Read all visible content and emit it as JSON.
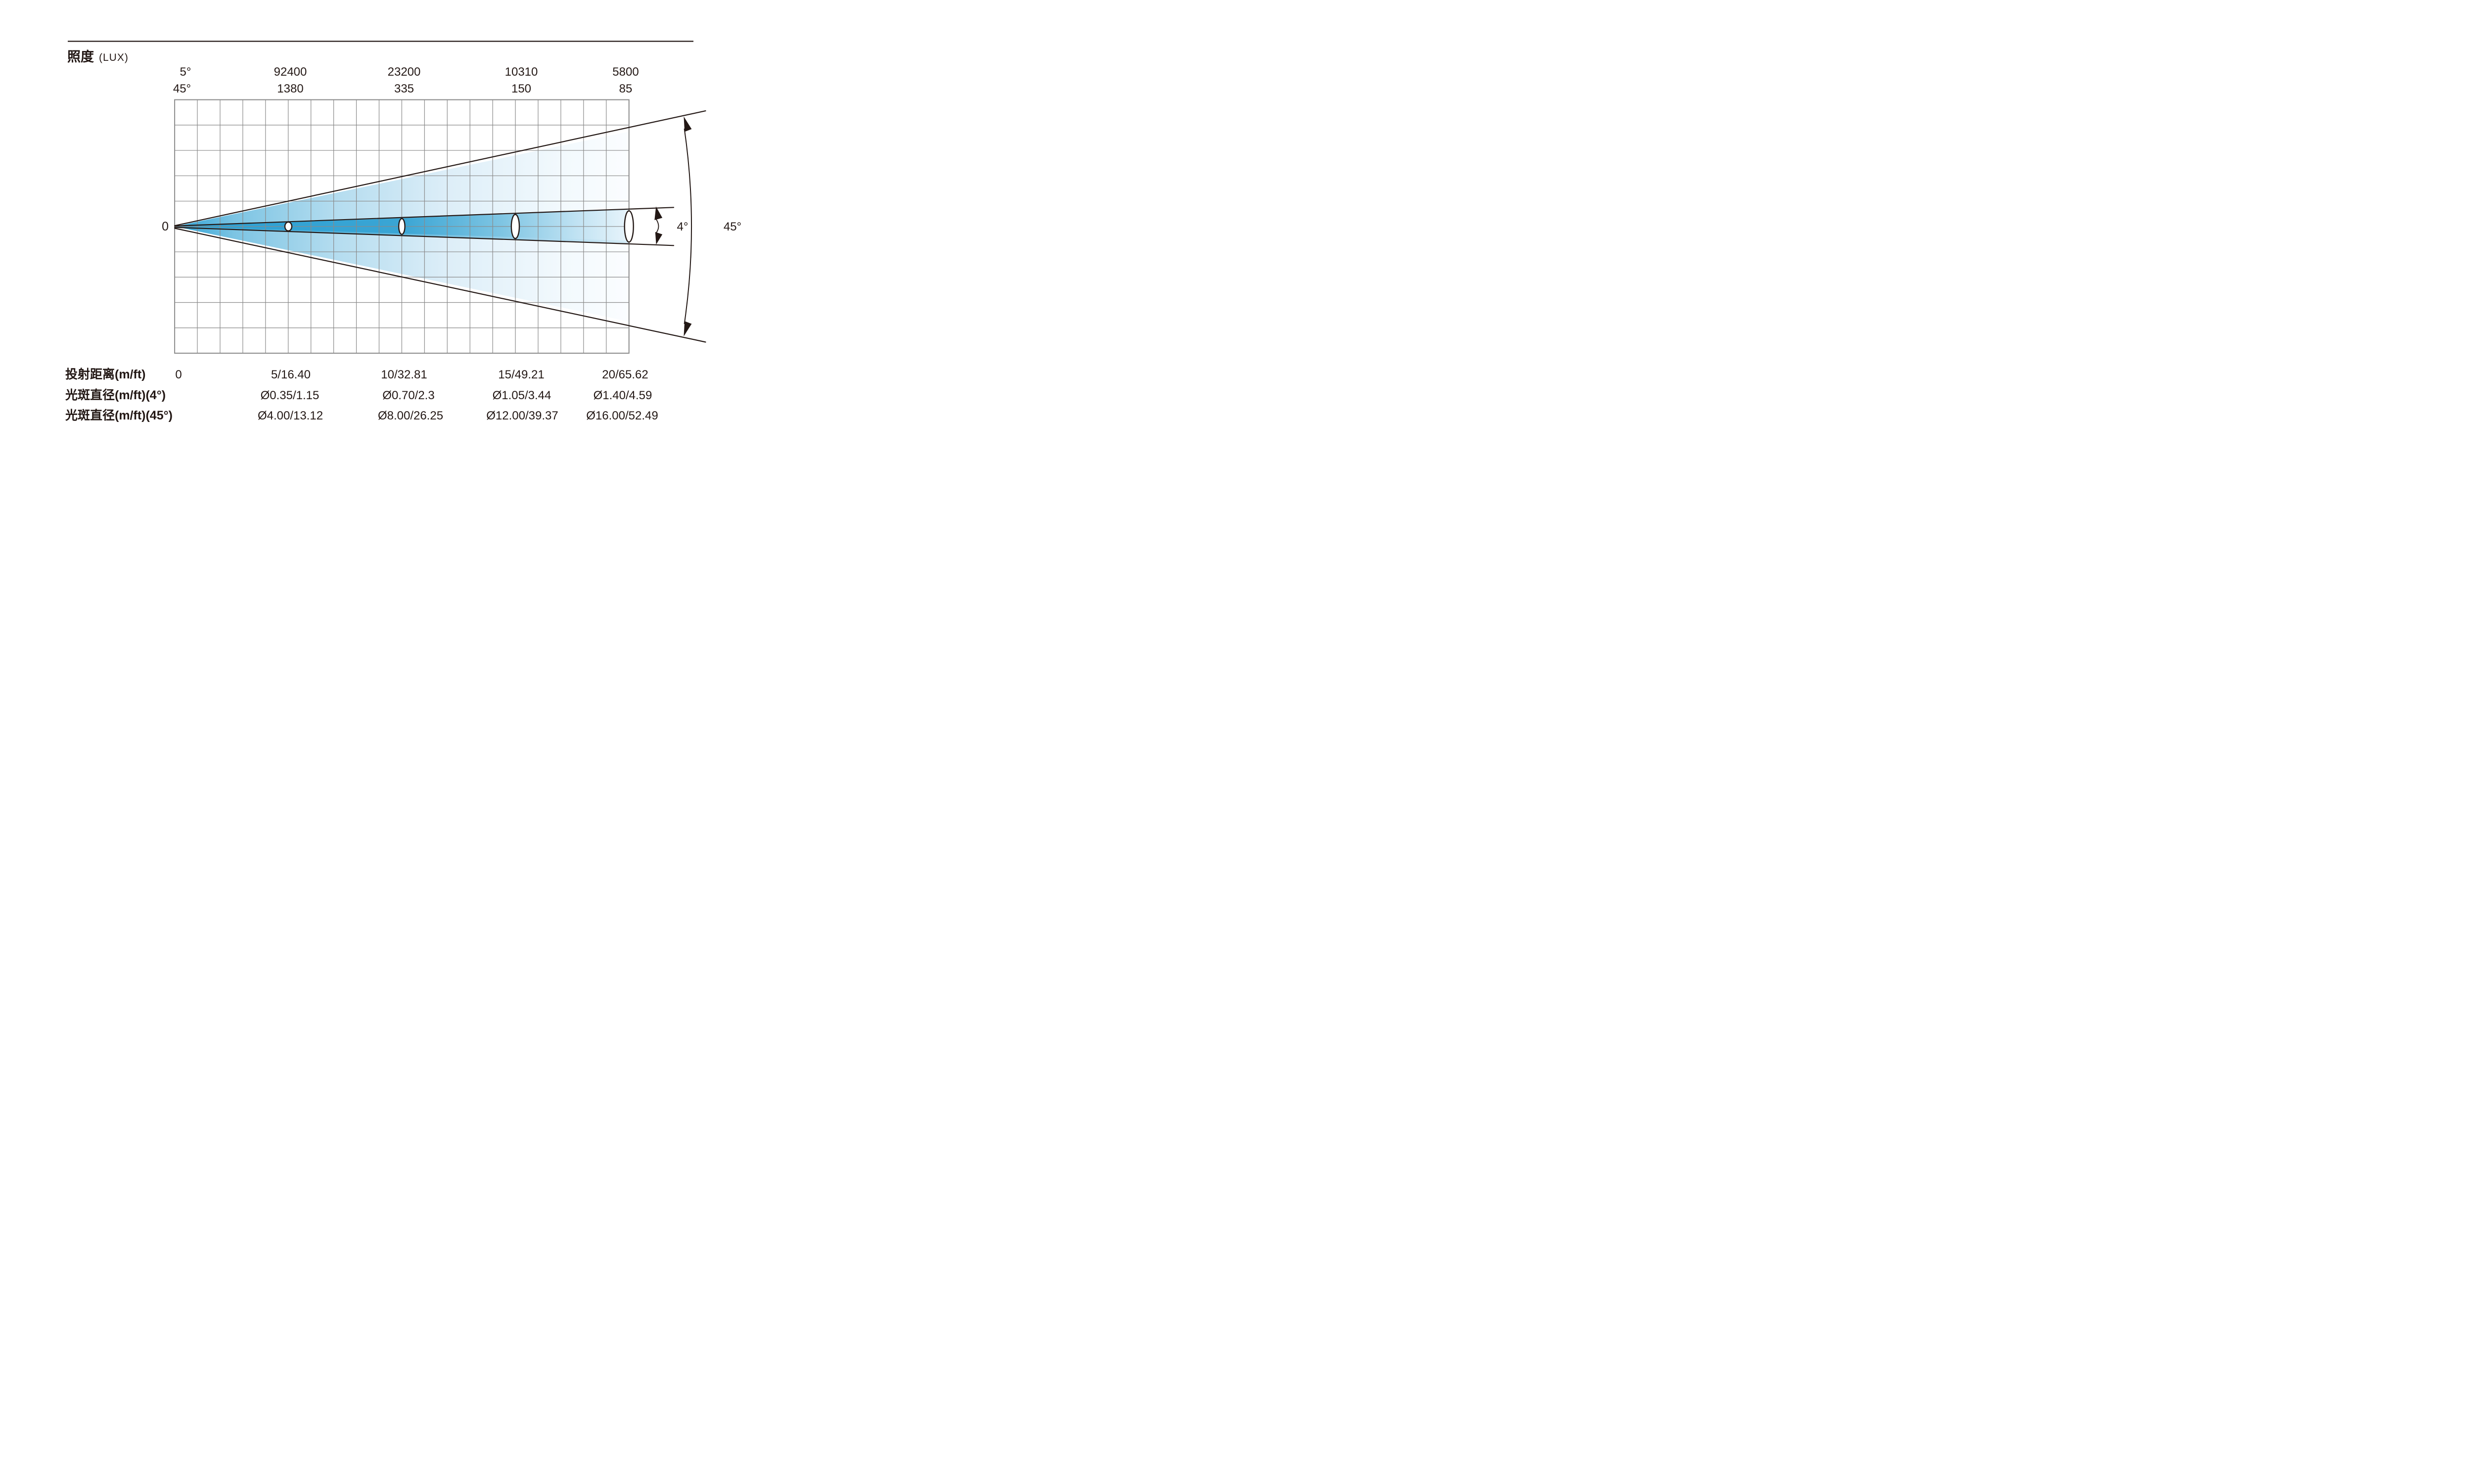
{
  "title": {
    "text": "照度",
    "unit": "(LUX)"
  },
  "chart_data": {
    "type": "table",
    "title": "照度(LUX)",
    "description": "Photometric beam diagram: illuminance in LUX versus throw distance for the narrow (4°/5°) and wide (45°) beam angles, with resulting spot diameters.",
    "x_axis": {
      "label": "投射距离(m/ft)",
      "values": [
        "0",
        "5/16.40",
        "10/32.81",
        "15/49.21",
        "20/65.62"
      ],
      "range_m": [
        0,
        20
      ]
    },
    "origin_label": "0",
    "illuminance_rows": [
      {
        "angle": "5°",
        "values": [
          "92400",
          "23200",
          "10310",
          "5800"
        ]
      },
      {
        "angle": "45°",
        "values": [
          "1380",
          "335",
          "150",
          "85"
        ]
      }
    ],
    "spot_rows": [
      {
        "label": "光斑直径(m/ft)(4°)",
        "values": [
          "Ø0.35/1.15",
          "Ø0.70/2.3",
          "Ø1.05/3.44",
          "Ø1.40/4.59"
        ]
      },
      {
        "label": "光斑直径(m/ft)(45°)",
        "values": [
          "Ø4.00/13.12",
          "Ø8.00/26.25",
          "Ø12.00/39.37",
          "Ø16.00/52.49"
        ]
      }
    ],
    "beam_annotations": {
      "narrow": "4°",
      "wide": "45°"
    },
    "grid": {
      "columns": 20,
      "rows": 10
    },
    "legend_position": "none",
    "colors": {
      "beam_core": "#2aa0d4",
      "beam_mid": "#7cc4e3",
      "beam_light": "#d9edf8",
      "grid": "#8a8a8a",
      "ink": "#231815"
    }
  }
}
